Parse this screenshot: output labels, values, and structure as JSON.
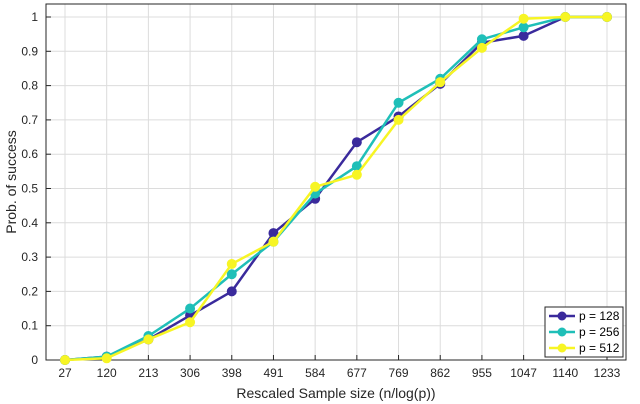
{
  "chart_data": {
    "type": "line",
    "xlabel": "Rescaled Sample size (n/log(p))",
    "ylabel": "Prob. of success",
    "categories": [
      "27",
      "120",
      "213",
      "306",
      "398",
      "491",
      "584",
      "677",
      "769",
      "862",
      "955",
      "1047",
      "1140",
      "1233"
    ],
    "ylim": [
      0,
      1
    ],
    "yticks": [
      "0",
      "0.1",
      "0.2",
      "0.3",
      "0.4",
      "0.5",
      "0.6",
      "0.7",
      "0.8",
      "0.9",
      "1"
    ],
    "grid": true,
    "legend_position": "bottom-right",
    "series": [
      {
        "name": "p = 128",
        "color": "#3A2A9C",
        "values": [
          0,
          0.01,
          0.06,
          0.13,
          0.2,
          0.37,
          0.47,
          0.635,
          0.71,
          0.805,
          0.925,
          0.945,
          1.0,
          1.0
        ]
      },
      {
        "name": "p = 256",
        "color": "#1FBFB8",
        "values": [
          0,
          0.01,
          0.07,
          0.15,
          0.25,
          0.345,
          0.485,
          0.565,
          0.75,
          0.82,
          0.935,
          0.97,
          1.0,
          1.0
        ]
      },
      {
        "name": "p = 512",
        "color": "#F7F524",
        "values": [
          0,
          0.005,
          0.06,
          0.11,
          0.28,
          0.345,
          0.505,
          0.54,
          0.7,
          0.81,
          0.91,
          0.995,
          1.0,
          1.0
        ]
      }
    ]
  }
}
